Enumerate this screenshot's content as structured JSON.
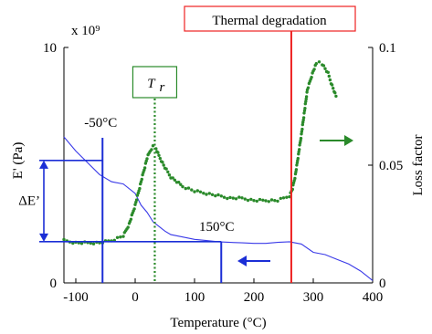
{
  "chart_data": {
    "type": "line",
    "xlabel": "Temperature (°C)",
    "ylabel_left": "E' (Pa)",
    "ylabel_right": "Loss factor",
    "left_axis_multiplier": "x 10⁹",
    "xlim": [
      -120,
      400
    ],
    "ylim_left": [
      0,
      10
    ],
    "ylim_right": [
      0,
      0.1
    ],
    "x_ticks": [
      "-100",
      "0",
      "100",
      "200",
      "300",
      "400"
    ],
    "y_left_ticks": [
      "0",
      "10"
    ],
    "y_right_ticks": [
      "0",
      "0.05",
      "0.1"
    ],
    "colors": {
      "storage_modulus": "#3a3ae8",
      "loss_factor": "#2a8a2a",
      "degradation": "#ee2222",
      "annotation": "#1b2ed6"
    },
    "series": [
      {
        "axis": "left",
        "x": [
          -120,
          -100,
          -80,
          -60,
          -40,
          -20,
          0,
          10,
          20,
          30,
          40,
          50,
          60,
          80,
          100,
          120,
          140,
          160,
          180,
          200,
          220,
          240,
          260,
          280,
          300,
          320,
          340,
          360,
          380,
          400
        ],
        "values": [
          6.2,
          5.6,
          5.1,
          4.6,
          4.3,
          4.2,
          3.8,
          3.3,
          3.0,
          2.6,
          2.4,
          2.2,
          2.05,
          1.95,
          1.85,
          1.8,
          1.75,
          1.72,
          1.7,
          1.68,
          1.68,
          1.72,
          1.75,
          1.65,
          1.3,
          1.2,
          1.0,
          0.8,
          0.5,
          0.1
        ]
      },
      {
        "axis": "right",
        "x": [
          -120,
          -100,
          -80,
          -60,
          -40,
          -20,
          -10,
          0,
          10,
          20,
          25,
          30,
          35,
          40,
          50,
          60,
          70,
          80,
          100,
          120,
          140,
          160,
          180,
          200,
          220,
          240,
          250,
          260,
          265,
          270,
          280,
          290,
          300,
          305,
          310,
          315,
          320,
          325,
          330,
          340
        ],
        "values": [
          0.018,
          0.017,
          0.017,
          0.017,
          0.018,
          0.02,
          0.025,
          0.033,
          0.043,
          0.053,
          0.056,
          0.058,
          0.057,
          0.054,
          0.049,
          0.045,
          0.043,
          0.041,
          0.039,
          0.038,
          0.037,
          0.036,
          0.036,
          0.035,
          0.035,
          0.035,
          0.036,
          0.037,
          0.04,
          0.046,
          0.063,
          0.082,
          0.09,
          0.093,
          0.094,
          0.093,
          0.091,
          0.089,
          0.085,
          0.078
        ]
      }
    ],
    "annotations": {
      "tr_label": "T",
      "tr_subscript": "r",
      "tr_x": 33,
      "degradation_label": "Thermal degradation",
      "degradation_x": 263,
      "minus50_label": "-50°C",
      "minus50_x": -55,
      "plus150_label": "150°C",
      "plus150_x": 145,
      "delta_e_label": "ΔE’",
      "delta_e_top": 5.2,
      "delta_e_bottom": 1.75
    }
  }
}
